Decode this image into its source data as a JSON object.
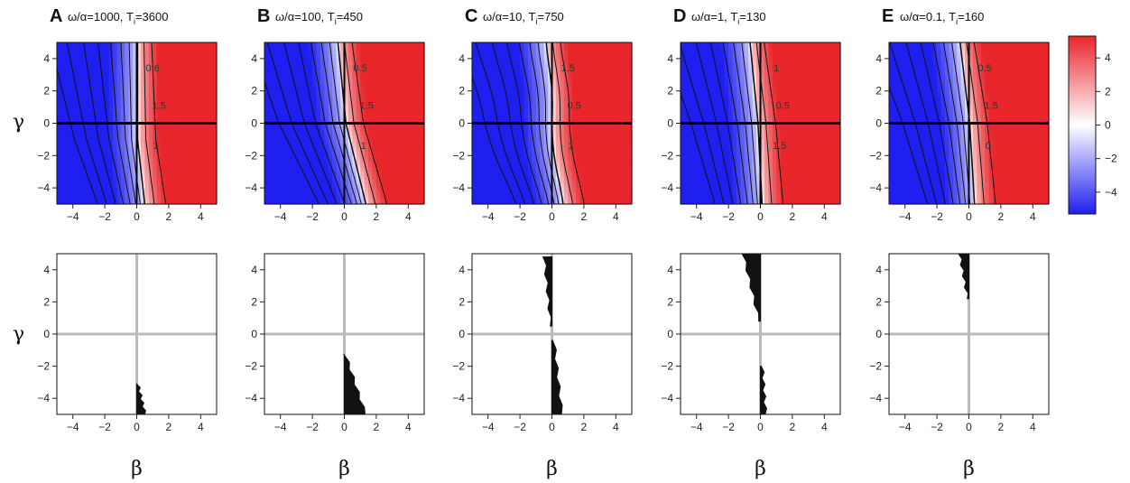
{
  "chart_data": {
    "type": "heatmap",
    "xlabel": "β",
    "ylabel": "γ",
    "xlim": [
      -5,
      5
    ],
    "ylim": [
      -5,
      5
    ],
    "ticks": [
      -4,
      -2,
      0,
      2,
      4
    ],
    "colorbar": {
      "min": -5.3,
      "max": 5.3,
      "ticks": [
        -4,
        -2,
        0,
        2,
        4
      ],
      "colors": [
        "#1f1ff0",
        "#ffffff",
        "#e8262b"
      ]
    },
    "panels": [
      {
        "letter": "A",
        "title": "ω/α=1000, T",
        "sub": "i",
        "val": "=3600",
        "contour_labels": [
          "0.6",
          "1.5",
          "1"
        ],
        "region": [
          {
            "y_from": -5.0,
            "y_to": -3.1,
            "x_at_bottom": 0.5,
            "x_at_top": 0.05
          }
        ]
      },
      {
        "letter": "B",
        "title": "ω/α=100, T",
        "sub": "i",
        "val": "=450",
        "contour_labels": [
          "0.5",
          "1.5",
          "1"
        ],
        "region": [
          {
            "y_from": -5.0,
            "y_to": -1.3,
            "x_at_bottom": 1.3,
            "x_at_top": 0.05
          }
        ]
      },
      {
        "letter": "C",
        "title": "ω/α=10, T",
        "sub": "i",
        "val": "=750",
        "contour_labels": [
          "1.5",
          "0.5",
          "1"
        ],
        "region": [
          {
            "y_from": 0.5,
            "y_to": 4.8,
            "x_at_bottom": -0.1,
            "x_at_top": -0.5
          },
          {
            "y_from": -5.0,
            "y_to": -0.4,
            "x_at_bottom": 0.6,
            "x_at_top": 0.1
          }
        ]
      },
      {
        "letter": "D",
        "title": "ω/α=1, T",
        "sub": "i",
        "val": "=130",
        "contour_labels": [
          "1",
          "0.5",
          "1.5"
        ],
        "region": [
          {
            "y_from": 0.8,
            "y_to": 5.0,
            "x_at_bottom": -0.1,
            "x_at_top": -1.1
          },
          {
            "y_from": -5.0,
            "y_to": -2.0,
            "x_at_bottom": 0.3,
            "x_at_top": 0.1
          }
        ]
      },
      {
        "letter": "E",
        "title": "ω/α=0.1, T",
        "sub": "i",
        "val": "=160",
        "contour_labels": [
          "0.5",
          "1.5",
          "0"
        ],
        "region": [
          {
            "y_from": 2.2,
            "y_to": 5.0,
            "x_at_bottom": -0.1,
            "x_at_top": -0.6
          }
        ]
      }
    ]
  }
}
